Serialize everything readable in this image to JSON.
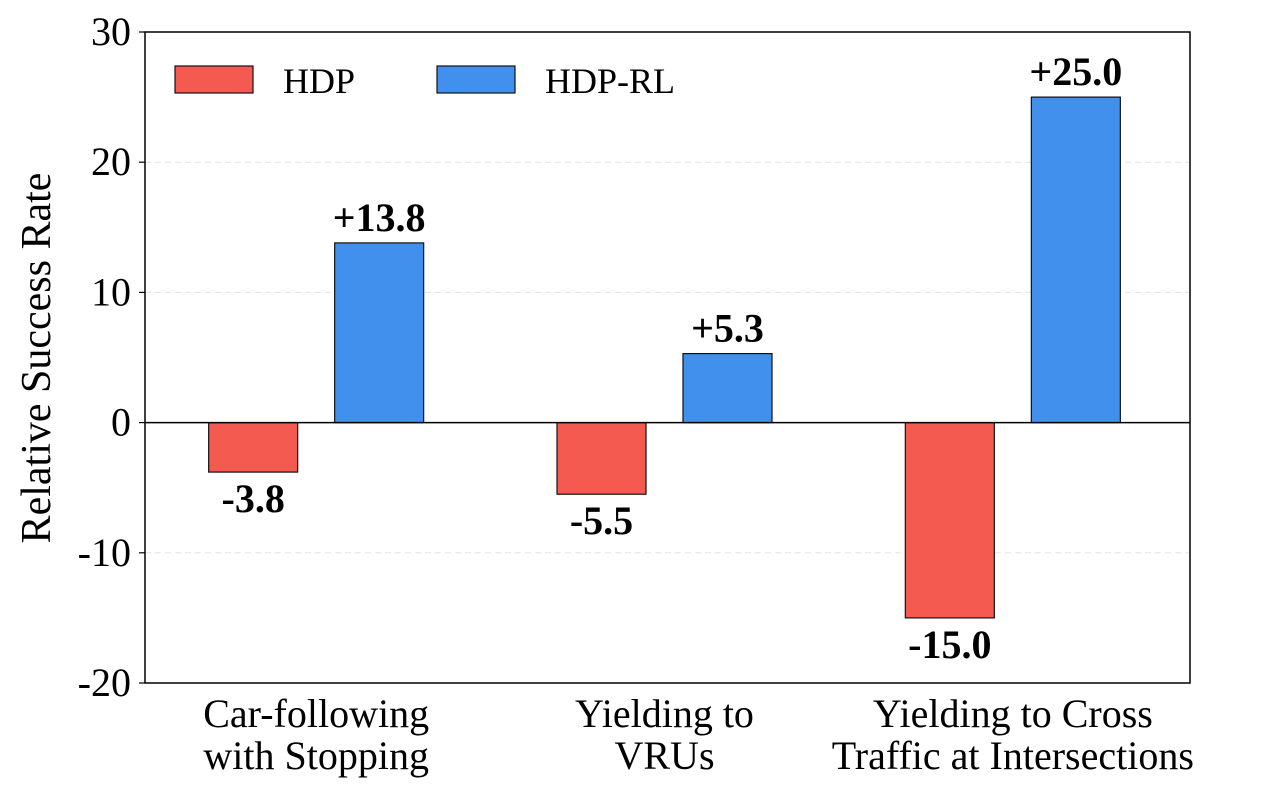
{
  "chart_data": {
    "type": "bar",
    "title": "",
    "xlabel": "",
    "ylabel": "Relative Success Rate",
    "ylim": [
      -20,
      30
    ],
    "yticks": [
      -20,
      -10,
      0,
      10,
      20,
      30
    ],
    "grid": "horizontal dashed",
    "legend_position": "top-left",
    "categories": [
      [
        "Car-following",
        "with Stopping"
      ],
      [
        "Yielding to",
        "VRUs"
      ],
      [
        "Yielding to Cross",
        "Traffic at Intersections"
      ]
    ],
    "series": [
      {
        "name": "HDP",
        "color": "#F55A50",
        "values": [
          -3.8,
          -5.5,
          -15.0
        ],
        "labels": [
          "-3.8",
          "-5.5",
          "-15.0"
        ]
      },
      {
        "name": "HDP-RL",
        "color": "#4290EE",
        "values": [
          13.8,
          5.3,
          25.0
        ],
        "labels": [
          "+13.8",
          "+5.3",
          "+25.0"
        ]
      }
    ]
  }
}
